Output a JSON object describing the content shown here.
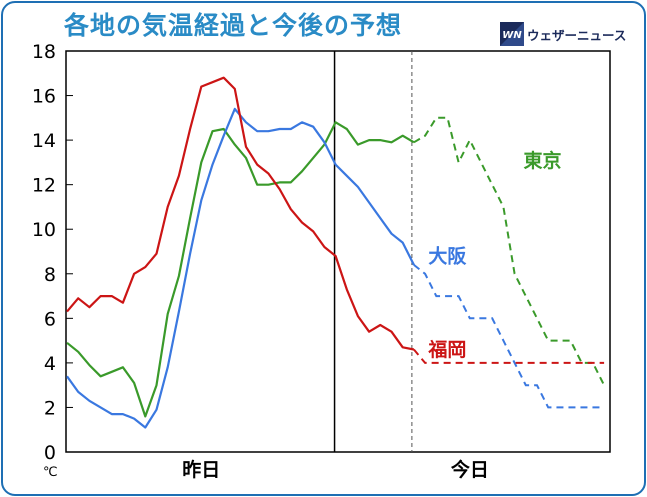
{
  "header": {
    "title": "各地の気温経過と今後の予想",
    "brand_mark": "WN",
    "brand_name": "ウェザーニュース"
  },
  "colors": {
    "frame": "#1e6fb4",
    "title": "#2a8bc6",
    "tokyo": "#3a9a2a",
    "osaka": "#3a78e0",
    "fukuoka": "#cc1515"
  },
  "chart_data": {
    "type": "line",
    "title": "各地の気温経過と今後の予想",
    "ylim": [
      0,
      18
    ],
    "y_ticks": [
      "0",
      "2",
      "4",
      "6",
      "8",
      "10",
      "12",
      "14",
      "16",
      "18"
    ],
    "y_unit": "℃",
    "xlim": [
      0,
      49
    ],
    "x_day_labels": [
      {
        "label": "昨日",
        "center_hour": 12
      },
      {
        "label": "今日",
        "center_hour": 36
      }
    ],
    "day_boundary_hour": 24,
    "observed_until_hour": 31,
    "grid": false,
    "series": [
      {
        "name": "東京",
        "color_key": "tokyo",
        "observed": [
          [
            0,
            4.9
          ],
          [
            1,
            4.5
          ],
          [
            2,
            3.9
          ],
          [
            3,
            3.4
          ],
          [
            4,
            3.6
          ],
          [
            5,
            3.8
          ],
          [
            6,
            3.1
          ],
          [
            7,
            1.6
          ],
          [
            8,
            3.0
          ],
          [
            9,
            6.2
          ],
          [
            10,
            7.9
          ],
          [
            11,
            10.5
          ],
          [
            12,
            13.0
          ],
          [
            13,
            14.4
          ],
          [
            14,
            14.5
          ],
          [
            15,
            13.8
          ],
          [
            16,
            13.2
          ],
          [
            17,
            12.0
          ],
          [
            18,
            12.0
          ],
          [
            19,
            12.1
          ],
          [
            20,
            12.1
          ],
          [
            21,
            12.6
          ],
          [
            22,
            13.2
          ],
          [
            23,
            13.8
          ],
          [
            24,
            14.8
          ],
          [
            25,
            14.5
          ],
          [
            26,
            13.8
          ],
          [
            27,
            14.0
          ],
          [
            28,
            14.0
          ],
          [
            29,
            13.9
          ],
          [
            30,
            14.2
          ],
          [
            31,
            13.9
          ]
        ],
        "forecast": [
          [
            31,
            13.9
          ],
          [
            32,
            14.2
          ],
          [
            33,
            15.0
          ],
          [
            34,
            15.0
          ],
          [
            35,
            13.0
          ],
          [
            36,
            14.0
          ],
          [
            37,
            13.0
          ],
          [
            38,
            12.0
          ],
          [
            39,
            11.0
          ],
          [
            40,
            8.0
          ],
          [
            41,
            7.0
          ],
          [
            42,
            6.0
          ],
          [
            43,
            5.0
          ],
          [
            44,
            5.0
          ],
          [
            45,
            5.0
          ],
          [
            46,
            4.0
          ],
          [
            47,
            4.0
          ],
          [
            48,
            3.0
          ]
        ],
        "label_hour": 40.8,
        "label_value": 12.8
      },
      {
        "name": "大阪",
        "color_key": "osaka",
        "observed": [
          [
            0,
            3.4
          ],
          [
            1,
            2.7
          ],
          [
            2,
            2.3
          ],
          [
            3,
            2.0
          ],
          [
            4,
            1.7
          ],
          [
            5,
            1.7
          ],
          [
            6,
            1.5
          ],
          [
            7,
            1.1
          ],
          [
            8,
            1.9
          ],
          [
            9,
            3.8
          ],
          [
            10,
            6.3
          ],
          [
            11,
            8.9
          ],
          [
            12,
            11.3
          ],
          [
            13,
            12.9
          ],
          [
            14,
            14.2
          ],
          [
            15,
            15.4
          ],
          [
            16,
            14.8
          ],
          [
            17,
            14.4
          ],
          [
            18,
            14.4
          ],
          [
            19,
            14.5
          ],
          [
            20,
            14.5
          ],
          [
            21,
            14.8
          ],
          [
            22,
            14.6
          ],
          [
            23,
            13.9
          ],
          [
            24,
            12.9
          ],
          [
            25,
            12.4
          ],
          [
            26,
            11.9
          ],
          [
            27,
            11.2
          ],
          [
            28,
            10.5
          ],
          [
            29,
            9.8
          ],
          [
            30,
            9.4
          ],
          [
            31,
            8.4
          ]
        ],
        "forecast": [
          [
            31,
            8.4
          ],
          [
            32,
            8.0
          ],
          [
            33,
            7.0
          ],
          [
            34,
            7.0
          ],
          [
            35,
            7.0
          ],
          [
            36,
            6.0
          ],
          [
            37,
            6.0
          ],
          [
            38,
            6.0
          ],
          [
            39,
            5.0
          ],
          [
            40,
            4.0
          ],
          [
            41,
            3.0
          ],
          [
            42,
            3.0
          ],
          [
            43,
            2.0
          ],
          [
            44,
            2.0
          ],
          [
            45,
            2.0
          ],
          [
            46,
            2.0
          ],
          [
            47,
            2.0
          ],
          [
            48,
            2.0
          ]
        ],
        "label_hour": 32.3,
        "label_value": 8.5
      },
      {
        "name": "福岡",
        "color_key": "fukuoka",
        "observed": [
          [
            0,
            6.3
          ],
          [
            1,
            6.9
          ],
          [
            2,
            6.5
          ],
          [
            3,
            7.0
          ],
          [
            4,
            7.0
          ],
          [
            5,
            6.7
          ],
          [
            6,
            8.0
          ],
          [
            7,
            8.3
          ],
          [
            8,
            8.9
          ],
          [
            9,
            11.0
          ],
          [
            10,
            12.4
          ],
          [
            11,
            14.5
          ],
          [
            12,
            16.4
          ],
          [
            13,
            16.6
          ],
          [
            14,
            16.8
          ],
          [
            15,
            16.3
          ],
          [
            16,
            13.7
          ],
          [
            17,
            12.9
          ],
          [
            18,
            12.5
          ],
          [
            19,
            11.8
          ],
          [
            20,
            10.9
          ],
          [
            21,
            10.3
          ],
          [
            22,
            9.9
          ],
          [
            23,
            9.2
          ],
          [
            24,
            8.8
          ],
          [
            25,
            7.3
          ],
          [
            26,
            6.1
          ],
          [
            27,
            5.4
          ],
          [
            28,
            5.7
          ],
          [
            29,
            5.4
          ],
          [
            30,
            4.7
          ],
          [
            31,
            4.6
          ]
        ],
        "forecast": [
          [
            31,
            4.6
          ],
          [
            32,
            4.0
          ],
          [
            33,
            4.0
          ],
          [
            34,
            4.0
          ],
          [
            35,
            4.0
          ],
          [
            36,
            4.0
          ],
          [
            37,
            4.0
          ],
          [
            38,
            4.0
          ],
          [
            39,
            4.0
          ],
          [
            40,
            4.0
          ],
          [
            41,
            4.0
          ],
          [
            42,
            4.0
          ],
          [
            43,
            4.0
          ],
          [
            44,
            4.0
          ],
          [
            45,
            4.0
          ],
          [
            46,
            4.0
          ],
          [
            47,
            4.0
          ],
          [
            48,
            4.0
          ]
        ],
        "label_hour": 32.3,
        "label_value": 4.3
      }
    ]
  }
}
